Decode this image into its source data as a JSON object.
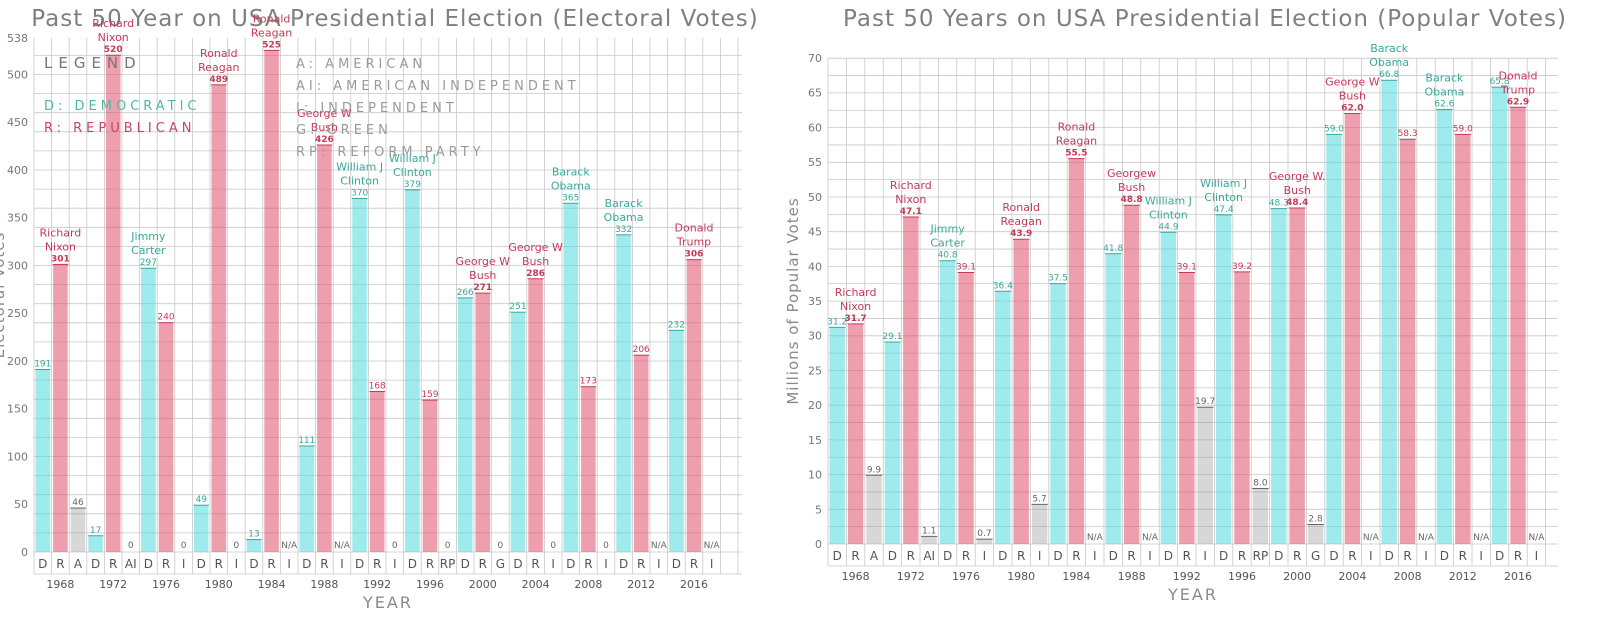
{
  "charts": [
    {
      "id": "electoral",
      "title": "Past 50 Year on USA Presidential Election (Electoral Votes)",
      "ylabel": "Electoral Votes",
      "xlabel": "YEAR",
      "ytick_labels": [
        "0",
        "50",
        "100",
        "150",
        "200",
        "250",
        "300",
        "350",
        "400",
        "450",
        "500",
        "538"
      ],
      "ytick_values": [
        0,
        50,
        100,
        150,
        200,
        250,
        300,
        350,
        400,
        450,
        500,
        538
      ],
      "legend": {
        "heading": "LEGEND",
        "entries": [
          {
            "code": "D",
            "text": "D: DEMOCRATIC",
            "color": "#4fb8a8"
          },
          {
            "code": "R",
            "text": "R: REPUBLICAN",
            "color": "#cc4466"
          },
          {
            "code": "A",
            "text": "A: AMERICAN",
            "color": "#9a9a9a"
          },
          {
            "code": "AI",
            "text": "AI: AMERICAN INDEPENDENT",
            "color": "#9a9a9a"
          },
          {
            "code": "I",
            "text": "I: INDEPENDENT",
            "color": "#9a9a9a"
          },
          {
            "code": "G",
            "text": "G: GREEN",
            "color": "#9a9a9a"
          },
          {
            "code": "RP",
            "text": "RP: REFORM PARTY",
            "color": "#9a9a9a"
          }
        ]
      },
      "chart_data": {
        "type": "bar",
        "title": "Past 50 Year on USA Presidential Election (Electoral Votes)",
        "xlabel": "YEAR",
        "ylabel": "Electoral Votes",
        "ylim": [
          0,
          538
        ],
        "grid": true,
        "legend_position": "top-left",
        "groups": [
          {
            "year": "1968",
            "bars": [
              {
                "party": "D",
                "value": 191,
                "label": "191"
              },
              {
                "party": "R",
                "value": 301,
                "label": "301",
                "winner": [
                  "Richard",
                  "Nixon"
                ]
              },
              {
                "party": "A",
                "value": 46,
                "label": "46"
              }
            ]
          },
          {
            "year": "1972",
            "bars": [
              {
                "party": "D",
                "value": 17,
                "label": "17"
              },
              {
                "party": "R",
                "value": 520,
                "label": "520",
                "winner": [
                  "Richard",
                  "Nixon"
                ]
              },
              {
                "party": "AI",
                "value": 0,
                "label": "0"
              }
            ]
          },
          {
            "year": "1976",
            "bars": [
              {
                "party": "D",
                "value": 297,
                "label": "297",
                "winner": [
                  "Jimmy",
                  "Carter"
                ]
              },
              {
                "party": "R",
                "value": 240,
                "label": "240"
              },
              {
                "party": "I",
                "value": 0,
                "label": "0"
              }
            ]
          },
          {
            "year": "1980",
            "bars": [
              {
                "party": "D",
                "value": 49,
                "label": "49"
              },
              {
                "party": "R",
                "value": 489,
                "label": "489",
                "winner": [
                  "Ronald",
                  "Reagan"
                ]
              },
              {
                "party": "I",
                "value": 0,
                "label": "0"
              }
            ]
          },
          {
            "year": "1984",
            "bars": [
              {
                "party": "D",
                "value": 13,
                "label": "13"
              },
              {
                "party": "R",
                "value": 525,
                "label": "525",
                "winner": [
                  "Ronald",
                  "Reagan"
                ]
              },
              {
                "party": "I",
                "value": null,
                "label": "N/A"
              }
            ]
          },
          {
            "year": "1988",
            "bars": [
              {
                "party": "D",
                "value": 111,
                "label": "111"
              },
              {
                "party": "R",
                "value": 426,
                "label": "426",
                "winner": [
                  "George W",
                  "Bush"
                ]
              },
              {
                "party": "I",
                "value": null,
                "label": "N/A"
              }
            ]
          },
          {
            "year": "1992",
            "bars": [
              {
                "party": "D",
                "value": 370,
                "label": "370",
                "winner": [
                  "William J",
                  "Clinton"
                ]
              },
              {
                "party": "R",
                "value": 168,
                "label": "168"
              },
              {
                "party": "I",
                "value": 0,
                "label": "0"
              }
            ]
          },
          {
            "year": "1996",
            "bars": [
              {
                "party": "D",
                "value": 379,
                "label": "379",
                "winner": [
                  "William J",
                  "Clinton"
                ]
              },
              {
                "party": "R",
                "value": 159,
                "label": "159"
              },
              {
                "party": "RP",
                "value": 0,
                "label": "0"
              }
            ]
          },
          {
            "year": "2000",
            "bars": [
              {
                "party": "D",
                "value": 266,
                "label": "266"
              },
              {
                "party": "R",
                "value": 271,
                "label": "271",
                "winner": [
                  "George W",
                  "Bush"
                ]
              },
              {
                "party": "G",
                "value": 0,
                "label": "0"
              }
            ]
          },
          {
            "year": "2004",
            "bars": [
              {
                "party": "D",
                "value": 251,
                "label": "251"
              },
              {
                "party": "R",
                "value": 286,
                "label": "286",
                "winner": [
                  "George W",
                  "Bush"
                ]
              },
              {
                "party": "I",
                "value": 0,
                "label": "0"
              }
            ]
          },
          {
            "year": "2008",
            "bars": [
              {
                "party": "D",
                "value": 365,
                "label": "365",
                "winner": [
                  "Barack",
                  "Obama"
                ]
              },
              {
                "party": "R",
                "value": 173,
                "label": "173"
              },
              {
                "party": "I",
                "value": 0,
                "label": "0"
              }
            ]
          },
          {
            "year": "2012",
            "bars": [
              {
                "party": "D",
                "value": 332,
                "label": "332",
                "winner": [
                  "Barack",
                  "Obama"
                ]
              },
              {
                "party": "R",
                "value": 206,
                "label": "206"
              },
              {
                "party": "I",
                "value": null,
                "label": "N/A"
              }
            ]
          },
          {
            "year": "2016",
            "bars": [
              {
                "party": "D",
                "value": 232,
                "label": "232"
              },
              {
                "party": "R",
                "value": 306,
                "label": "306",
                "winner": [
                  "Donald",
                  "Trump"
                ]
              },
              {
                "party": "I",
                "value": null,
                "label": "N/A"
              }
            ]
          }
        ]
      }
    },
    {
      "id": "popular",
      "title": "Past 50 Years on USA Presidential Election (Popular Votes)",
      "ylabel": "Millions of Popular Votes",
      "xlabel": "YEAR",
      "ytick_labels": [
        "0",
        "5",
        "10",
        "15",
        "20",
        "25",
        "30",
        "35",
        "40",
        "45",
        "50",
        "55",
        "60",
        "65",
        "70"
      ],
      "ytick_values": [
        0,
        5,
        10,
        15,
        20,
        25,
        30,
        35,
        40,
        45,
        50,
        55,
        60,
        65,
        70
      ],
      "chart_data": {
        "type": "bar",
        "title": "Past 50 Years on USA Presidential Election (Popular Votes)",
        "xlabel": "YEAR",
        "ylabel": "Millions of Popular Votes",
        "ylim": [
          0,
          70
        ],
        "grid": true,
        "groups": [
          {
            "year": "1968",
            "bars": [
              {
                "party": "D",
                "value": 31.2,
                "label": "31.2"
              },
              {
                "party": "R",
                "value": 31.7,
                "label": "31.7",
                "winner": [
                  "Richard",
                  "Nixon"
                ]
              },
              {
                "party": "A",
                "value": 9.9,
                "label": "9.9"
              }
            ]
          },
          {
            "year": "1972",
            "bars": [
              {
                "party": "D",
                "value": 29.1,
                "label": "29.1"
              },
              {
                "party": "R",
                "value": 47.1,
                "label": "47.1",
                "winner": [
                  "Richard",
                  "Nixon"
                ]
              },
              {
                "party": "AI",
                "value": 1.1,
                "label": "1.1"
              }
            ]
          },
          {
            "year": "1976",
            "bars": [
              {
                "party": "D",
                "value": 40.8,
                "label": "40.8",
                "winner": [
                  "Jimmy",
                  "Carter"
                ]
              },
              {
                "party": "R",
                "value": 39.1,
                "label": "39.1"
              },
              {
                "party": "I",
                "value": 0.7,
                "label": "0.7"
              }
            ]
          },
          {
            "year": "1980",
            "bars": [
              {
                "party": "D",
                "value": 36.4,
                "label": "36.4"
              },
              {
                "party": "R",
                "value": 43.9,
                "label": "43.9",
                "winner": [
                  "Ronald",
                  "Reagan"
                ]
              },
              {
                "party": "I",
                "value": 5.7,
                "label": "5.7"
              }
            ]
          },
          {
            "year": "1984",
            "bars": [
              {
                "party": "D",
                "value": 37.5,
                "label": "37.5"
              },
              {
                "party": "R",
                "value": 55.5,
                "label": "55.5",
                "winner": [
                  "Ronald",
                  "Reagan"
                ]
              },
              {
                "party": "I",
                "value": null,
                "label": "N/A"
              }
            ]
          },
          {
            "year": "1988",
            "bars": [
              {
                "party": "D",
                "value": 41.8,
                "label": "41.8"
              },
              {
                "party": "R",
                "value": 48.8,
                "label": "48.8",
                "winner": [
                  "Georgew",
                  "Bush"
                ]
              },
              {
                "party": "I",
                "value": null,
                "label": "N/A"
              }
            ]
          },
          {
            "year": "1992",
            "bars": [
              {
                "party": "D",
                "value": 44.9,
                "label": "44.9",
                "winner": [
                  "William J",
                  "Clinton"
                ]
              },
              {
                "party": "R",
                "value": 39.1,
                "label": "39.1"
              },
              {
                "party": "I",
                "value": 19.7,
                "label": "19.7"
              }
            ]
          },
          {
            "year": "1996",
            "bars": [
              {
                "party": "D",
                "value": 47.4,
                "label": "47.4",
                "winner": [
                  "William J",
                  "Clinton"
                ]
              },
              {
                "party": "R",
                "value": 39.2,
                "label": "39.2"
              },
              {
                "party": "RP",
                "value": 8.0,
                "label": "8.0"
              }
            ]
          },
          {
            "year": "2000",
            "bars": [
              {
                "party": "D",
                "value": 48.3,
                "label": "48.3"
              },
              {
                "party": "R",
                "value": 48.4,
                "label": "48.4",
                "winner": [
                  "George W.",
                  "Bush"
                ]
              },
              {
                "party": "G",
                "value": 2.8,
                "label": "2.8"
              }
            ]
          },
          {
            "year": "2004",
            "bars": [
              {
                "party": "D",
                "value": 59.0,
                "label": "59.0"
              },
              {
                "party": "R",
                "value": 62.0,
                "label": "62.0",
                "winner": [
                  "George W",
                  "Bush"
                ]
              },
              {
                "party": "I",
                "value": null,
                "label": "N/A"
              }
            ]
          },
          {
            "year": "2008",
            "bars": [
              {
                "party": "D",
                "value": 66.8,
                "label": "66.8",
                "winner": [
                  "Barack",
                  "Obama"
                ]
              },
              {
                "party": "R",
                "value": 58.3,
                "label": "58.3"
              },
              {
                "party": "I",
                "value": null,
                "label": "N/A"
              }
            ]
          },
          {
            "year": "2012",
            "bars": [
              {
                "party": "D",
                "value": 62.6,
                "label": "62.6",
                "winner": [
                  "Barack",
                  "Obama"
                ]
              },
              {
                "party": "R",
                "value": 59.0,
                "label": "59.0"
              },
              {
                "party": "I",
                "value": null,
                "label": "N/A"
              }
            ]
          },
          {
            "year": "2016",
            "bars": [
              {
                "party": "D",
                "value": 65.8,
                "label": "65.8"
              },
              {
                "party": "R",
                "value": 62.9,
                "label": "62.9",
                "winner": [
                  "Donald",
                  "Trump"
                ]
              },
              {
                "party": "I",
                "value": null,
                "label": "N/A"
              }
            ]
          }
        ]
      }
    }
  ],
  "colors": {
    "D": "#4fd8dc",
    "R": "#e0506a",
    "third": "#9a9a9a",
    "grid": "#c8c8c8",
    "title": "#7f7f7f",
    "d_text": "#3aa89a",
    "r_text": "#c43a58"
  }
}
